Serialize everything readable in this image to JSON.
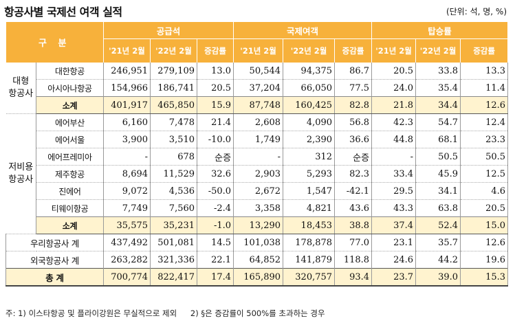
{
  "title": "항공사별 국제선 여객 실적",
  "unit": "(단위: 석, 명, %)",
  "header": {
    "gubun": "구 분",
    "groups": [
      "공급석",
      "국제여객",
      "탑승률"
    ],
    "sub": [
      "'21년 2월",
      "'22년 2월",
      "증감률"
    ]
  },
  "groups": {
    "major": "대형\n항공사",
    "lcc": "저비용\n항공사"
  },
  "rows": [
    {
      "name": "대한항공",
      "v": [
        "246,951",
        "279,109",
        "13.0",
        "50,544",
        "94,375",
        "86.7",
        "20.5",
        "33.8",
        "13.3"
      ]
    },
    {
      "name": "아시아나항공",
      "v": [
        "154,966",
        "186,741",
        "20.5",
        "37,204",
        "66,050",
        "77.5",
        "24.0",
        "35.4",
        "11.4"
      ]
    },
    {
      "name": "소계",
      "v": [
        "401,917",
        "465,850",
        "15.9",
        "87,748",
        "160,425",
        "82.8",
        "21.8",
        "34.4",
        "12.6"
      ]
    },
    {
      "name": "에어부산",
      "v": [
        "6,160",
        "7,478",
        "21.4",
        "2,608",
        "4,090",
        "56.8",
        "42.3",
        "54.7",
        "12.4"
      ]
    },
    {
      "name": "에어서울",
      "v": [
        "3,900",
        "3,510",
        "-10.0",
        "1,749",
        "2,390",
        "36.6",
        "44.8",
        "68.1",
        "23.3"
      ]
    },
    {
      "name": "에어프레미아",
      "v": [
        "-",
        "678",
        "순증",
        "-",
        "312",
        "순증",
        "-",
        "50.5",
        "50.5"
      ]
    },
    {
      "name": "제주항공",
      "v": [
        "8,694",
        "11,529",
        "32.6",
        "2,903",
        "5,293",
        "82.3",
        "33.4",
        "45.9",
        "12.5"
      ]
    },
    {
      "name": "진에어",
      "v": [
        "9,072",
        "4,536",
        "-50.0",
        "2,672",
        "1,547",
        "-42.1",
        "29.5",
        "34.1",
        "4.6"
      ]
    },
    {
      "name": "티웨이항공",
      "v": [
        "7,749",
        "7,560",
        "-2.4",
        "3,358",
        "4,821",
        "43.6",
        "43.3",
        "63.8",
        "20.5"
      ]
    },
    {
      "name": "소계",
      "v": [
        "35,575",
        "35,231",
        "-1.0",
        "13,290",
        "18,453",
        "38.8",
        "37.4",
        "52.4",
        "15.0"
      ]
    },
    {
      "name": "우리항공사 계",
      "v": [
        "437,492",
        "501,081",
        "14.5",
        "101,038",
        "178,878",
        "77.0",
        "23.1",
        "35.7",
        "12.6"
      ]
    },
    {
      "name": "외국항공사 계",
      "v": [
        "263,282",
        "321,336",
        "22.1",
        "64,852",
        "141,879",
        "118.8",
        "24.6",
        "44.2",
        "19.6"
      ]
    },
    {
      "name": "총 계",
      "v": [
        "700,774",
        "822,417",
        "17.4",
        "165,890",
        "320,757",
        "93.4",
        "23.7",
        "39.0",
        "15.3"
      ]
    }
  ],
  "notes": [
    "주: 1) 이스타항공 및 플라이강원은 무실적으로 제외",
    "2) §은 증감률이 500%를 초과하는 경우"
  ]
}
